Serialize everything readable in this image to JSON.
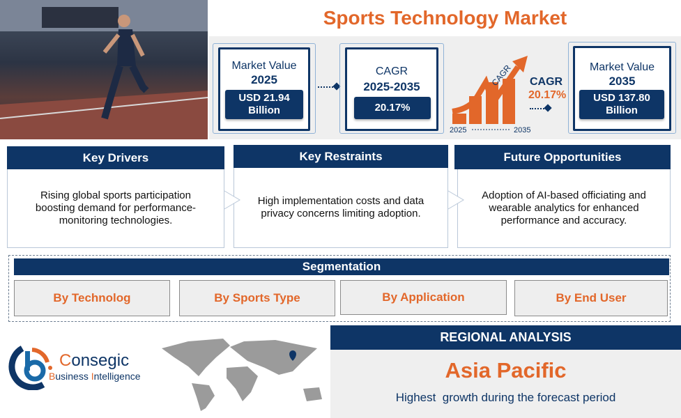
{
  "title": "Sports Technology Market",
  "metrics": {
    "mv2025": {
      "label": "Market Value",
      "year": "2025",
      "value_line1": "USD 21.94",
      "value_line2": "Billion"
    },
    "cagr": {
      "label": "CAGR",
      "period": "2025-2035",
      "value": "20.17%"
    },
    "graphic": {
      "arrow_text": "CAGR",
      "label": "CAGR",
      "value": "20.17%",
      "start": "2025",
      "end": "2035"
    },
    "mv2035": {
      "label": "Market Value",
      "year": "2035",
      "value_line1": "USD 137.80",
      "value_line2": "Billion"
    }
  },
  "cards": [
    {
      "title": "Key Drivers",
      "text": "Rising global sports participation boosting demand for performance-monitoring technologies."
    },
    {
      "title": "Key Restraints",
      "text": "High implementation costs and data privacy concerns limiting adoption."
    },
    {
      "title": "Future Opportunities",
      "text": "Adoption of AI-based officiating and wearable analytics for enhanced performance and accuracy."
    }
  ],
  "segmentation": {
    "title": "Segmentation",
    "items": [
      "By Technolog",
      "By Sports Type",
      "By Application",
      "By End User"
    ]
  },
  "logo": {
    "name_first": "C",
    "name_rest": "onsegic",
    "sub_b": "B",
    "sub_1": "usiness ",
    "sub_i": "I",
    "sub_2": "ntelligence"
  },
  "regional": {
    "title": "REGIONAL ANALYSIS",
    "region": "Asia Pacific",
    "subtitle": "Highest  growth during the forecast period"
  },
  "colors": {
    "navy": "#0e3566",
    "orange": "#e2672a",
    "grey": "#efefef"
  }
}
